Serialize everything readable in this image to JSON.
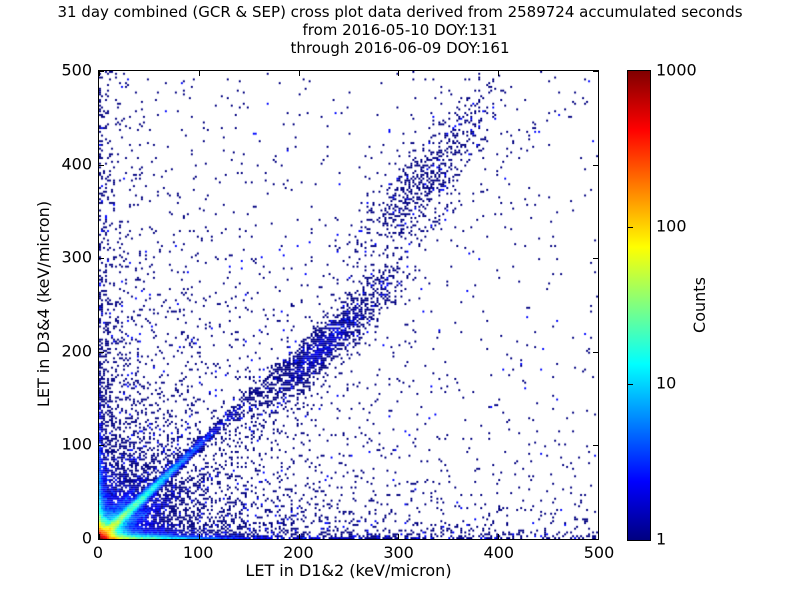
{
  "title": {
    "line1": "31 day combined (GCR & SEP) cross plot data derived from 2589724 accumulated seconds",
    "line2": "from 2016-05-10 DOY:131",
    "line3": "through 2016-06-09 DOY:161"
  },
  "chart_data": {
    "type": "heatmap",
    "title": "31 day combined (GCR & SEP) cross plot data derived from 2589724 accumulated seconds",
    "subtitle_lines": [
      "from 2016-05-10 DOY:131",
      "through 2016-06-09 DOY:161"
    ],
    "xlabel": "LET in D1&2 (keV/micron)",
    "ylabel": "LET in D3&4 (keV/micron)",
    "xlim": [
      0,
      500
    ],
    "ylim": [
      0,
      500
    ],
    "x_ticks": [
      "0",
      "100",
      "200",
      "300",
      "400",
      "500"
    ],
    "y_ticks": [
      "500",
      "400",
      "300",
      "200",
      "100",
      "0"
    ],
    "grid": false,
    "legend": null,
    "background": "#ffffff",
    "colorbar": {
      "label": "Counts",
      "colormap": "jet",
      "scale": "log",
      "min": 1,
      "max": 1000,
      "ticks": [
        "1000",
        "100",
        "10",
        "1"
      ]
    },
    "features": [
      "intense hot spot (counts ~1000, red/orange) at origin below ~15 keV/micron in both detectors",
      "bright identity ridge y=x (cyan/green fading to blue) from origin to ~100 keV/micron",
      "bright band along x-axis near y=0 (yellow/green near origin) with sparse blue tail to 500",
      "band along y-axis near x=0 with sparse blue tail to 500",
      "dense blue scatter cloud filling the region below ~80 keV/micron in both axes",
      "elongated diagonal cluster of single counts centered near (225,205) spanning ~(150,130)-(290,280)",
      "sparse diagonal extension cluster centered near (325,385)",
      "isolated single-count (dark blue) points scattered over the whole plane, denser toward lower-left"
    ],
    "density_model": {
      "seed": 42,
      "bin_size_units": 2,
      "components": [
        {
          "kind": "expxy",
          "amp": 1400,
          "sx": 5,
          "sy": 5
        },
        {
          "kind": "expxy",
          "amp": 160,
          "sx": 30,
          "sy": 2
        },
        {
          "kind": "expxy",
          "amp": 2.5,
          "sx": 420,
          "sy": 2.6
        },
        {
          "kind": "expxy",
          "amp": 30,
          "sx": 2,
          "sy": 35
        },
        {
          "kind": "expxy",
          "amp": 1.6,
          "sx": 2.6,
          "sy": 320
        },
        {
          "kind": "expxy",
          "amp": 9,
          "sx": 24,
          "sy": 24
        },
        {
          "kind": "expxy",
          "amp": 2.2,
          "sx": 55,
          "sy": 55
        },
        {
          "kind": "expxy",
          "amp": 0.3,
          "sx": 170,
          "sy": 170
        },
        {
          "kind": "expxy",
          "amp": 0.5,
          "sx": 300,
          "sy": 18
        },
        {
          "kind": "expxy",
          "amp": 0.35,
          "sx": 18,
          "sy": 300
        },
        {
          "kind": "expxy",
          "amp": 0.008,
          "sx": 100000,
          "sy": 100000
        },
        {
          "kind": "ridge",
          "slope": 1,
          "amp": 70,
          "width": 2.4,
          "decay": 45
        },
        {
          "kind": "ridge",
          "slope": 0.62,
          "amp": 7,
          "width": 3.5,
          "decay": 38
        },
        {
          "kind": "ridge",
          "slope": 1.55,
          "amp": 5,
          "width": 3.5,
          "decay": 35
        },
        {
          "kind": "ridge",
          "slope": 1,
          "amp": 1.0,
          "width": 5,
          "decay": 200
        },
        {
          "kind": "gauss",
          "cx": 225,
          "cy": 205,
          "angle": 47,
          "sa": 50,
          "sp": 10,
          "amp": 1.7
        },
        {
          "kind": "gauss",
          "cx": 325,
          "cy": 385,
          "angle": 55,
          "sa": 60,
          "sp": 16,
          "amp": 0.5
        }
      ]
    }
  }
}
